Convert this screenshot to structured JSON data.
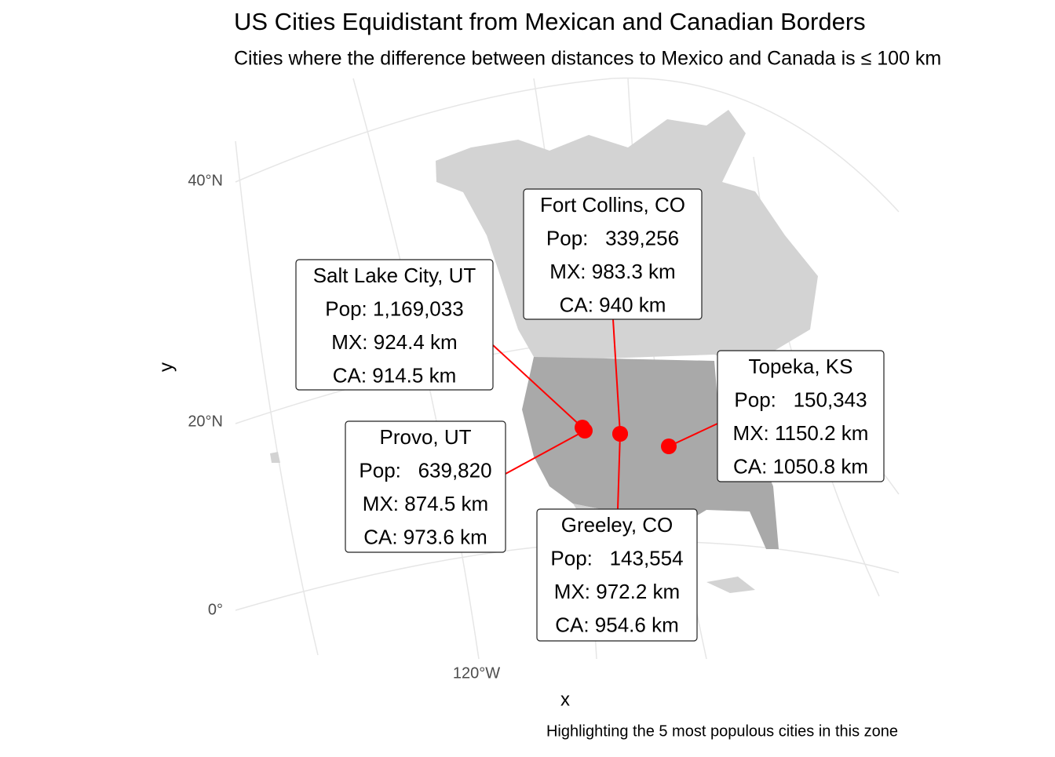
{
  "title": "US Cities Equidistant from Mexican and Canadian Borders",
  "subtitle": "Cities where the difference between distances to Mexico and Canada is ≤ 100 km",
  "x_label": "x",
  "y_label": "y",
  "caption": "Highlighting the 5 most populous cities in this zone",
  "lat_labels": [
    "40°N",
    "20°N",
    "0°"
  ],
  "lon_labels": [
    "120°W"
  ],
  "cities": [
    {
      "name": "Salt Lake City, UT",
      "pop": "Pop: 1,169,033",
      "mx": "MX: 924.4 km",
      "ca": "CA: 914.5 km"
    },
    {
      "name": "Fort Collins, CO",
      "pop": "Pop:   339,256",
      "mx": "MX: 983.3 km",
      "ca": "CA: 940 km"
    },
    {
      "name": "Topeka, KS",
      "pop": "Pop:   150,343",
      "mx": "MX: 1150.2 km",
      "ca": "CA: 1050.8 km"
    },
    {
      "name": "Provo, UT",
      "pop": "Pop:   639,820",
      "mx": "MX: 874.5 km",
      "ca": "CA: 973.6 km"
    },
    {
      "name": "Greeley, CO",
      "pop": "Pop:   143,554",
      "mx": "MX: 972.2 km",
      "ca": "CA: 954.6 km"
    }
  ]
}
